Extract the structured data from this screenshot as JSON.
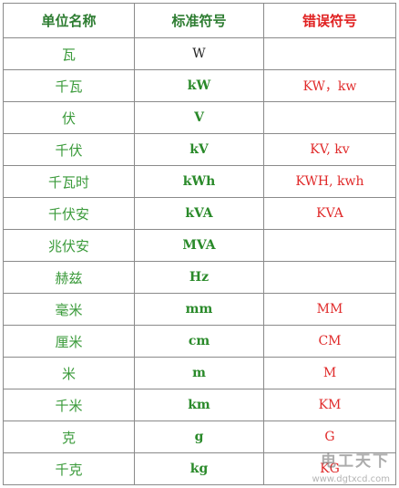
{
  "headers": [
    "单位名称",
    "标准符号",
    "错误符号"
  ],
  "rows": [
    {
      "name": "瓦",
      "std": "W",
      "err": ""
    },
    {
      "name": "千瓦",
      "std": "kW",
      "err": "KW，kw"
    },
    {
      "name": "伏",
      "std": "V",
      "err": ""
    },
    {
      "name": "千伏",
      "std": "kV",
      "err": "KV,   kv"
    },
    {
      "name": "千瓦时",
      "std": "kWh",
      "err": "KWH,   kwh"
    },
    {
      "name": "千伏安",
      "std": "kVA",
      "err": "KVA"
    },
    {
      "name": "兆伏安",
      "std": "MVA",
      "err": ""
    },
    {
      "name": "赫兹",
      "std": "Hz",
      "err": ""
    },
    {
      "name": "毫米",
      "std": "mm",
      "err": "MM"
    },
    {
      "name": "厘米",
      "std": "cm",
      "err": "CM"
    },
    {
      "name": "米",
      "std": "m",
      "err": "M"
    },
    {
      "name": "千米",
      "std": "km",
      "err": "KM"
    },
    {
      "name": "克",
      "std": "g",
      "err": "G"
    },
    {
      "name": "千克",
      "std": "kg",
      "err": "KG"
    }
  ],
  "watermark": {
    "text": "电工天下",
    "url": "www.dgtxcd.com"
  }
}
